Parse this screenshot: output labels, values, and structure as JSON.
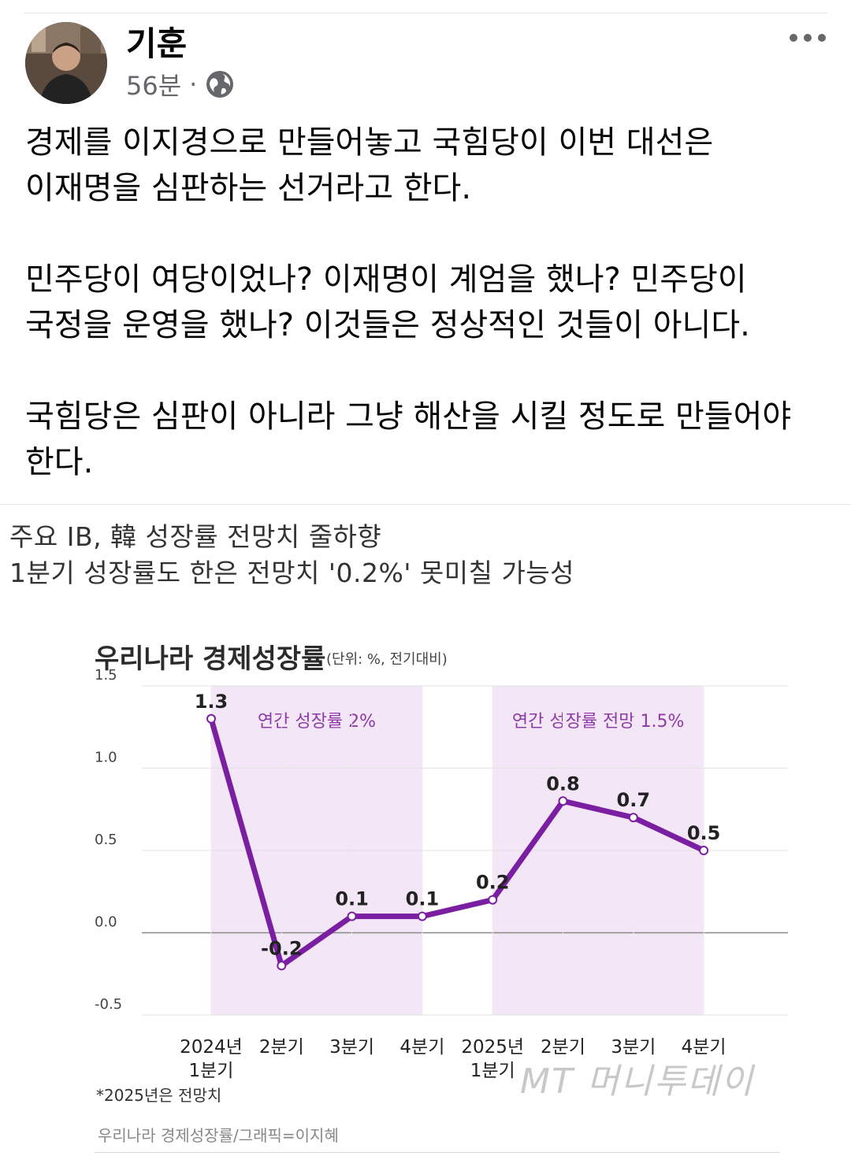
{
  "post": {
    "author": "기훈",
    "time": "56분",
    "separator": "·",
    "privacy_icon": "globe-icon",
    "more_icon": "more-icon",
    "paragraphs": [
      "경제를 이지경으로 만들어놓고 국힘당이 이번 대선은\n이재명을 심판하는 선거라고 한다.",
      "민주당이 여당이었나? 이재명이 계엄을 했나? 민주당이\n국정을 운영을 했나? 이것들은 정상적인 것들이 아니다.",
      "국힘당은 심판이 아니라 그냥 해산을 시킬 정도로 만들어야\n한다."
    ]
  },
  "image": {
    "headline1": "주요 IB, 韓 성장률 전망치 줄하향",
    "headline2": "1분기 성장률도 한은 전망치 '0.2%' 못미칠 가능성",
    "footnote": "*2025년은 전망치",
    "caption": "우리나라 경제성장률/그래픽=이지혜",
    "watermark": "MT 머니투데이"
  },
  "chart_data": {
    "type": "line",
    "title": "우리나라 경제성장률",
    "unit_note": "(단위: %, 전기대비)",
    "categories": [
      "2024년\n1분기",
      "2분기",
      "3분기",
      "4분기",
      "2025년\n1분기",
      "2분기",
      "3분기",
      "4분기"
    ],
    "values": [
      1.3,
      -0.2,
      0.1,
      0.1,
      0.2,
      0.8,
      0.7,
      0.5
    ],
    "value_labels": [
      "1.3",
      "-0.2",
      "0.1",
      "0.1",
      "0.2",
      "0.8",
      "0.7",
      "0.5"
    ],
    "ylim": [
      -0.5,
      1.5
    ],
    "yticks": [
      "1.5",
      "1.0",
      "0.5",
      "0.0",
      "-0.5"
    ],
    "ytick_values": [
      1.5,
      1.0,
      0.5,
      0.0,
      -0.5
    ],
    "shaded_bands": [
      {
        "from_index": 0,
        "to_index": 3,
        "label": "연간 성장률 2%"
      },
      {
        "from_index": 4,
        "to_index": 7,
        "label": "연간 성장률 전망 1.5%"
      }
    ],
    "grid": true,
    "line_color": "#7b1fa2",
    "band_color": "#f3e6f6"
  }
}
